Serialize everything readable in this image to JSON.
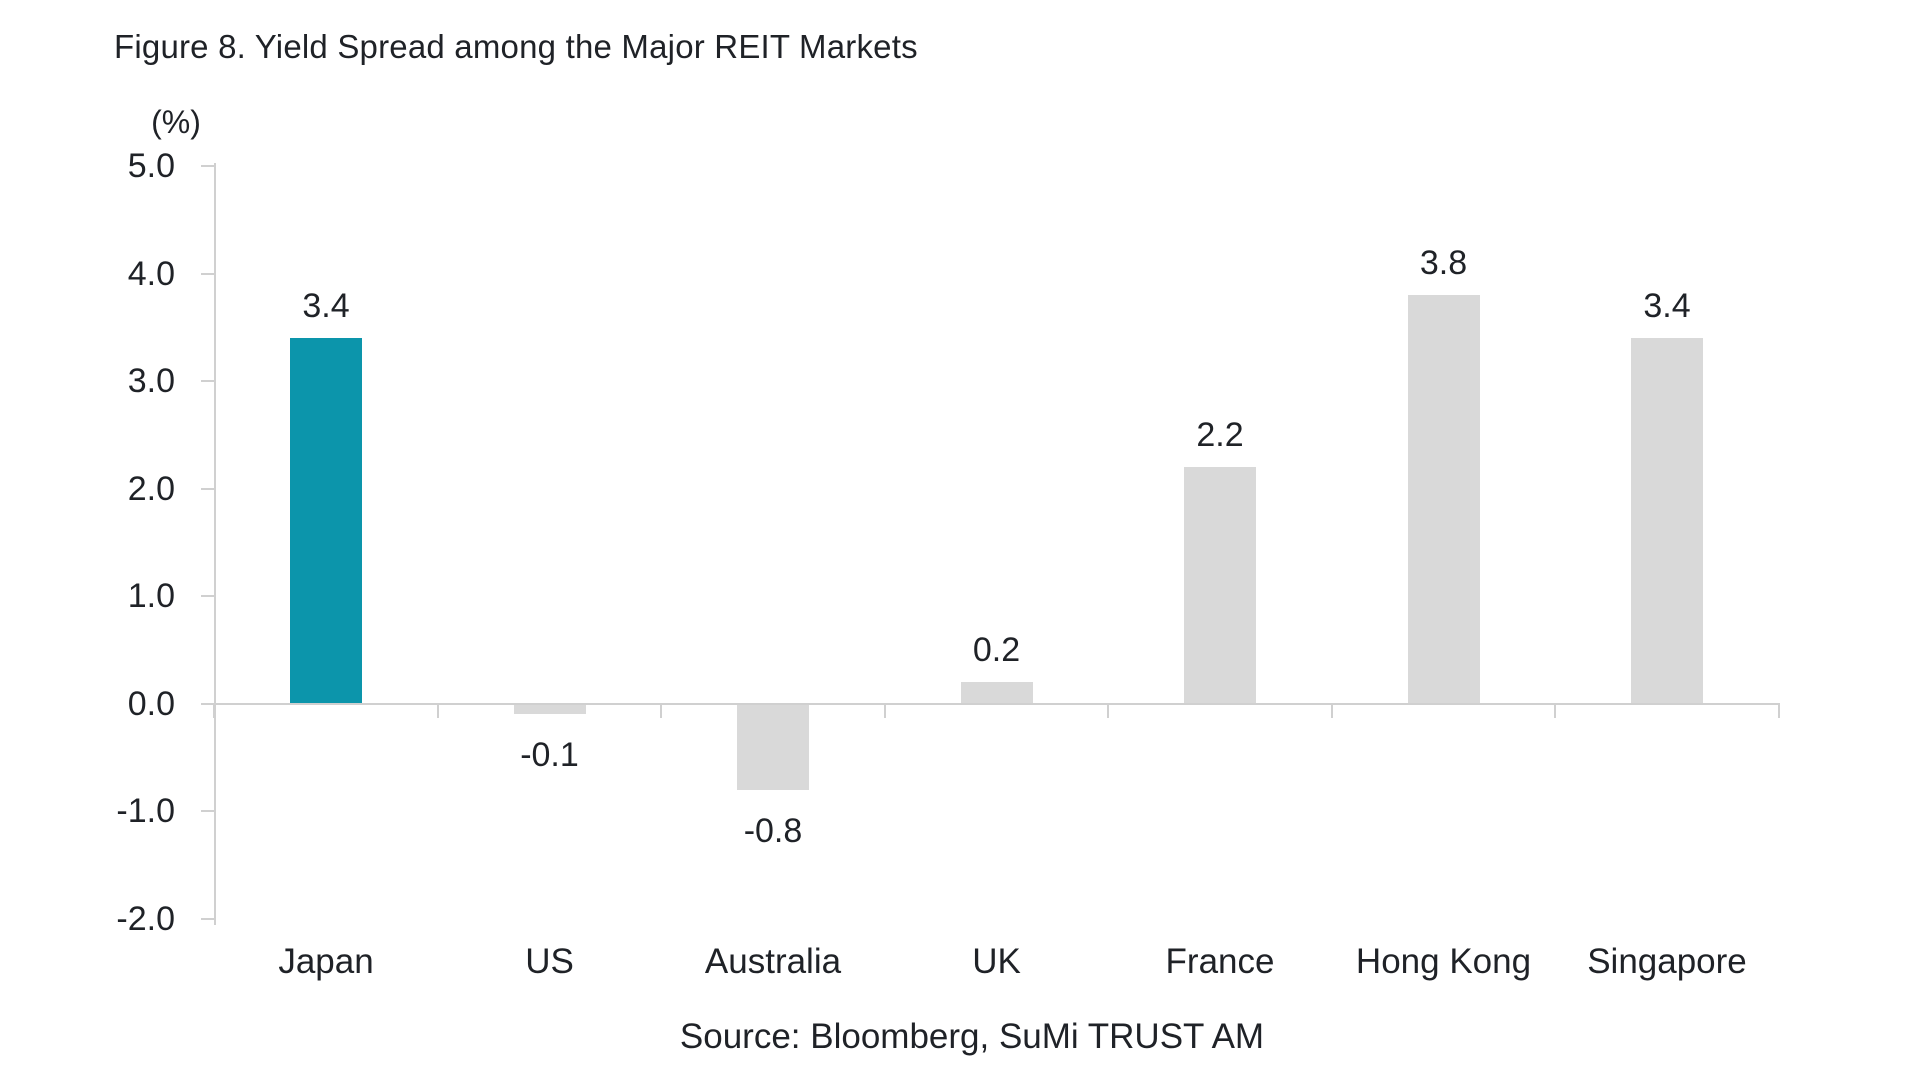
{
  "chart_data": {
    "type": "bar",
    "title": "Figure 8. Yield Spread among the Major REIT Markets",
    "ylabel": "(%)",
    "xlabel": "",
    "source_note": "Source: Bloomberg, SuMi TRUST AM",
    "categories": [
      "Japan",
      "US",
      "Australia",
      "UK",
      "France",
      "Hong Kong",
      "Singapore"
    ],
    "values": [
      3.4,
      -0.1,
      -0.8,
      0.2,
      2.2,
      3.8,
      3.4
    ],
    "value_labels": [
      "3.4",
      "-0.1",
      "-0.8",
      "0.2",
      "2.2",
      "3.8",
      "3.4"
    ],
    "highlight_category": "Japan",
    "y_ticks": [
      5.0,
      4.0,
      3.0,
      2.0,
      1.0,
      0.0,
      -1.0,
      -2.0
    ],
    "y_tick_labels": [
      "5.0",
      "4.0",
      "3.0",
      "2.0",
      "1.0",
      "0.0",
      "-1.0",
      "-2.0"
    ],
    "ylim": [
      -2.0,
      5.0
    ],
    "grid": false,
    "legend": false,
    "colors": {
      "highlight_bar": "#0C95AB",
      "default_bar": "#D9D9D9",
      "axis_line": "#D0D0D0",
      "text": "#1F2227"
    }
  }
}
